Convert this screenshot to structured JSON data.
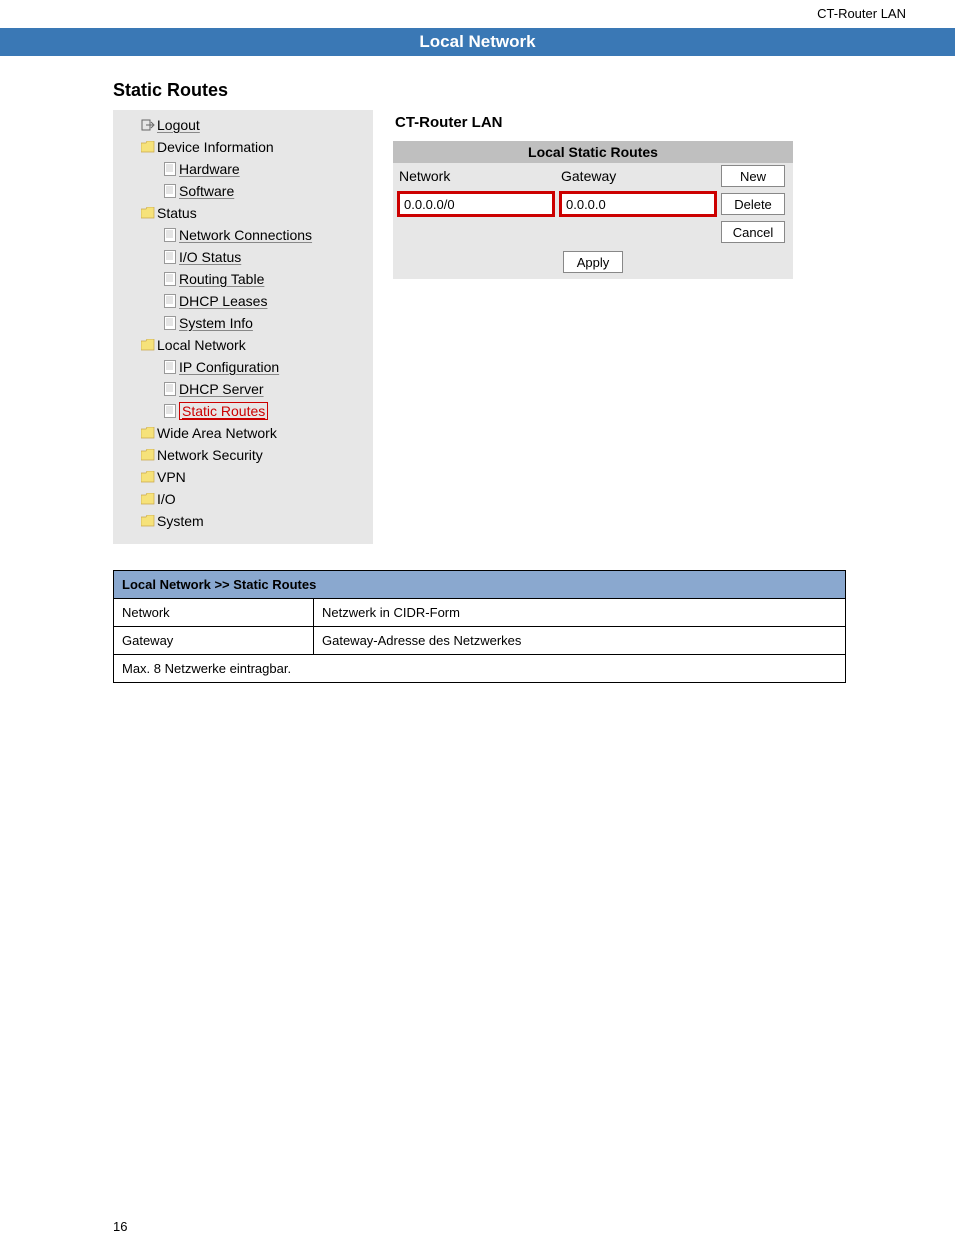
{
  "colors": {
    "blue_bar": "#3a78b5",
    "nav_bg": "#e7e7e7",
    "routes_header_bg": "#bfbfbf",
    "highlight_border": "#cc0000",
    "info_header_bg": "#8aa8cf",
    "text": "#000000"
  },
  "header": {
    "product": "CT-Router LAN"
  },
  "blue_bar": {
    "title": "Local Network"
  },
  "section": {
    "title": "Static Routes"
  },
  "nav": {
    "items": [
      {
        "icon": "exit",
        "label": "Logout",
        "indent": 1,
        "underline": true
      },
      {
        "icon": "folder",
        "label": "Device Information",
        "indent": 1,
        "underline": false
      },
      {
        "icon": "page",
        "label": "Hardware",
        "indent": 2,
        "underline": true
      },
      {
        "icon": "page",
        "label": "Software",
        "indent": 2,
        "underline": true
      },
      {
        "icon": "folder",
        "label": "Status",
        "indent": 1,
        "underline": false
      },
      {
        "icon": "page",
        "label": "Network Connections",
        "indent": 2,
        "underline": true
      },
      {
        "icon": "page",
        "label": "I/O Status",
        "indent": 2,
        "underline": true
      },
      {
        "icon": "page",
        "label": "Routing Table",
        "indent": 2,
        "underline": true
      },
      {
        "icon": "page",
        "label": "DHCP Leases",
        "indent": 2,
        "underline": true
      },
      {
        "icon": "page",
        "label": "System Info",
        "indent": 2,
        "underline": true
      },
      {
        "icon": "folder",
        "label": "Local Network",
        "indent": 1,
        "underline": false
      },
      {
        "icon": "page",
        "label": "IP Configuration",
        "indent": 2,
        "underline": true
      },
      {
        "icon": "page",
        "label": "DHCP Server",
        "indent": 2,
        "underline": true
      },
      {
        "icon": "page",
        "label": "Static Routes",
        "indent": 2,
        "underline": true,
        "selected": true
      },
      {
        "icon": "folder",
        "label": "Wide Area Network",
        "indent": 1,
        "underline": false
      },
      {
        "icon": "folder",
        "label": "Network Security",
        "indent": 1,
        "underline": false
      },
      {
        "icon": "folder",
        "label": "VPN",
        "indent": 1,
        "underline": false
      },
      {
        "icon": "folder",
        "label": "I/O",
        "indent": 1,
        "underline": false
      },
      {
        "icon": "folder",
        "label": "System",
        "indent": 1,
        "underline": false
      }
    ]
  },
  "content": {
    "title": "CT-Router LAN",
    "section_header": "Local Static Routes",
    "col_network": "Network",
    "col_gateway": "Gateway",
    "input_network": "0.0.0.0/0",
    "input_gateway": "0.0.0.0",
    "btn_new": "New",
    "btn_delete": "Delete",
    "btn_cancel": "Cancel",
    "btn_apply": "Apply"
  },
  "info_table": {
    "title": "Local Network >> Static Routes",
    "rows": [
      {
        "k": "Network",
        "v": "Netzwerk in CIDR-Form"
      },
      {
        "k": "Gateway",
        "v": "Gateway-Adresse des Netzwerkes"
      }
    ],
    "footer": "Max. 8 Netzwerke eintragbar."
  },
  "page_number": "16"
}
